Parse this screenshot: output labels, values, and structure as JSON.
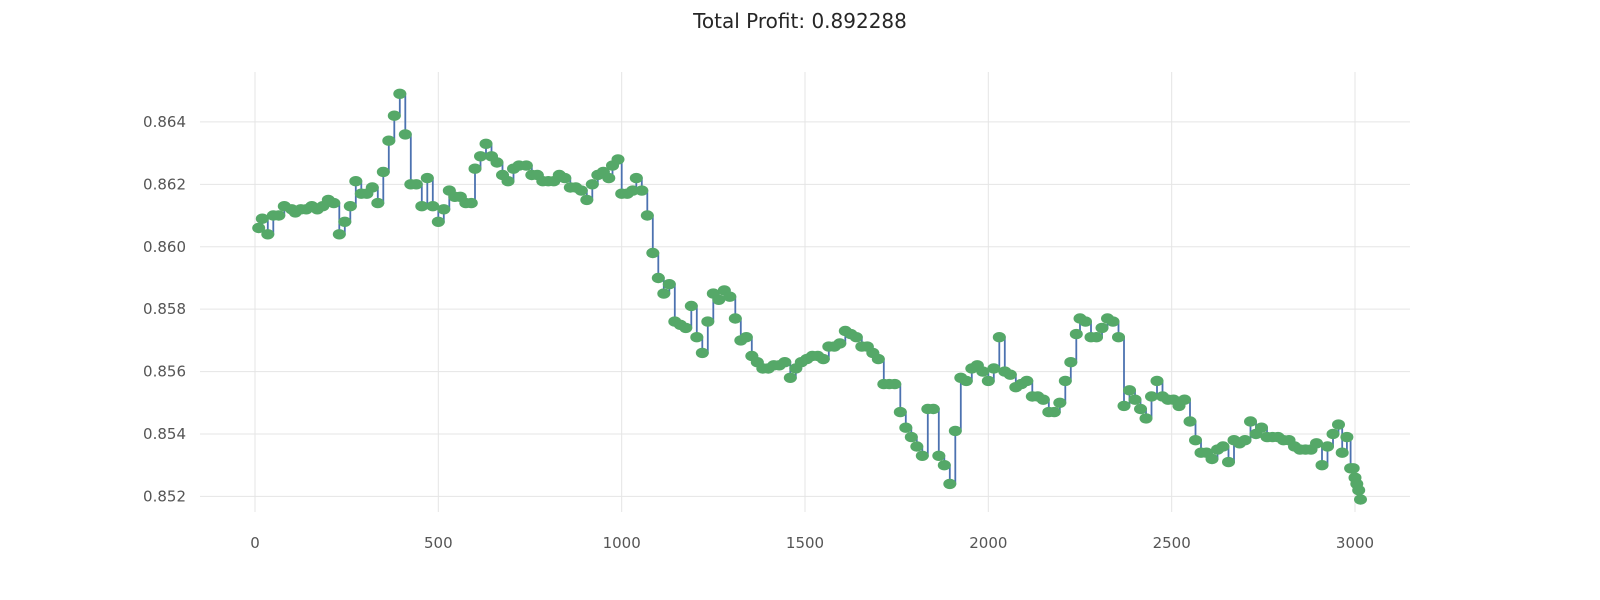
{
  "chart_data": {
    "type": "line",
    "title": "Total Profit: 0.892288",
    "xlabel": "",
    "ylabel": "",
    "xlim": [
      -150,
      3150
    ],
    "ylim": [
      0.8515,
      0.8656
    ],
    "x_ticks": [
      0,
      500,
      1000,
      1500,
      2000,
      2500,
      3000
    ],
    "y_ticks": [
      0.852,
      0.854,
      0.856,
      0.858,
      0.86,
      0.862,
      0.864
    ],
    "grid": true,
    "line_color": "#4c72b0",
    "marker_color": "#55a868",
    "series": [
      {
        "points": [
          [
            10,
            0.8606
          ],
          [
            20,
            0.8609
          ],
          [
            35,
            0.8604
          ],
          [
            50,
            0.861
          ],
          [
            65,
            0.861
          ],
          [
            80,
            0.8613
          ],
          [
            100,
            0.8612
          ],
          [
            110,
            0.8611
          ],
          [
            125,
            0.8612
          ],
          [
            140,
            0.8612
          ],
          [
            155,
            0.8613
          ],
          [
            170,
            0.8612
          ],
          [
            185,
            0.8613
          ],
          [
            200,
            0.8615
          ],
          [
            215,
            0.8614
          ],
          [
            230,
            0.8604
          ],
          [
            245,
            0.8608
          ],
          [
            260,
            0.8613
          ],
          [
            275,
            0.8621
          ],
          [
            290,
            0.8617
          ],
          [
            305,
            0.8617
          ],
          [
            320,
            0.8619
          ],
          [
            335,
            0.8614
          ],
          [
            350,
            0.8624
          ],
          [
            365,
            0.8634
          ],
          [
            380,
            0.8642
          ],
          [
            395,
            0.8649
          ],
          [
            410,
            0.8636
          ],
          [
            425,
            0.862
          ],
          [
            440,
            0.862
          ],
          [
            455,
            0.8613
          ],
          [
            470,
            0.8622
          ],
          [
            485,
            0.8613
          ],
          [
            500,
            0.8608
          ],
          [
            515,
            0.8612
          ],
          [
            530,
            0.8618
          ],
          [
            545,
            0.8616
          ],
          [
            560,
            0.8616
          ],
          [
            575,
            0.8614
          ],
          [
            590,
            0.8614
          ],
          [
            600,
            0.8625
          ],
          [
            615,
            0.8629
          ],
          [
            630,
            0.8633
          ],
          [
            645,
            0.8629
          ],
          [
            660,
            0.8627
          ],
          [
            675,
            0.8623
          ],
          [
            690,
            0.8621
          ],
          [
            705,
            0.8625
          ],
          [
            720,
            0.8626
          ],
          [
            740,
            0.8626
          ],
          [
            755,
            0.8623
          ],
          [
            770,
            0.8623
          ],
          [
            785,
            0.8621
          ],
          [
            800,
            0.8621
          ],
          [
            815,
            0.8621
          ],
          [
            830,
            0.8623
          ],
          [
            845,
            0.8622
          ],
          [
            860,
            0.8619
          ],
          [
            875,
            0.8619
          ],
          [
            890,
            0.8618
          ],
          [
            905,
            0.8615
          ],
          [
            920,
            0.862
          ],
          [
            935,
            0.8623
          ],
          [
            950,
            0.8624
          ],
          [
            965,
            0.8622
          ],
          [
            975,
            0.8626
          ],
          [
            990,
            0.8628
          ],
          [
            1000,
            0.8617
          ],
          [
            1015,
            0.8617
          ],
          [
            1030,
            0.8618
          ],
          [
            1040,
            0.8622
          ],
          [
            1055,
            0.8618
          ],
          [
            1070,
            0.861
          ],
          [
            1085,
            0.8598
          ],
          [
            1100,
            0.859
          ],
          [
            1115,
            0.8585
          ],
          [
            1130,
            0.8588
          ],
          [
            1145,
            0.8576
          ],
          [
            1160,
            0.8575
          ],
          [
            1175,
            0.8574
          ],
          [
            1190,
            0.8581
          ],
          [
            1205,
            0.8571
          ],
          [
            1220,
            0.8566
          ],
          [
            1235,
            0.8576
          ],
          [
            1250,
            0.8585
          ],
          [
            1265,
            0.8583
          ],
          [
            1280,
            0.8586
          ],
          [
            1295,
            0.8584
          ],
          [
            1310,
            0.8577
          ],
          [
            1325,
            0.857
          ],
          [
            1340,
            0.8571
          ],
          [
            1355,
            0.8565
          ],
          [
            1370,
            0.8563
          ],
          [
            1385,
            0.8561
          ],
          [
            1400,
            0.8561
          ],
          [
            1415,
            0.8562
          ],
          [
            1430,
            0.8562
          ],
          [
            1445,
            0.8563
          ],
          [
            1460,
            0.8558
          ],
          [
            1475,
            0.8561
          ],
          [
            1490,
            0.8563
          ],
          [
            1505,
            0.8564
          ],
          [
            1520,
            0.8565
          ],
          [
            1535,
            0.8565
          ],
          [
            1550,
            0.8564
          ],
          [
            1565,
            0.8568
          ],
          [
            1580,
            0.8568
          ],
          [
            1595,
            0.8569
          ],
          [
            1610,
            0.8573
          ],
          [
            1625,
            0.8572
          ],
          [
            1640,
            0.8571
          ],
          [
            1655,
            0.8568
          ],
          [
            1670,
            0.8568
          ],
          [
            1685,
            0.8566
          ],
          [
            1700,
            0.8564
          ],
          [
            1715,
            0.8556
          ],
          [
            1730,
            0.8556
          ],
          [
            1745,
            0.8556
          ],
          [
            1760,
            0.8547
          ],
          [
            1775,
            0.8542
          ],
          [
            1790,
            0.8539
          ],
          [
            1805,
            0.8536
          ],
          [
            1820,
            0.8533
          ],
          [
            1835,
            0.8548
          ],
          [
            1850,
            0.8548
          ],
          [
            1865,
            0.8533
          ],
          [
            1880,
            0.853
          ],
          [
            1895,
            0.8524
          ],
          [
            1910,
            0.8541
          ],
          [
            1925,
            0.8558
          ],
          [
            1940,
            0.8557
          ],
          [
            1955,
            0.8561
          ],
          [
            1970,
            0.8562
          ],
          [
            1985,
            0.856
          ],
          [
            2000,
            0.8557
          ],
          [
            2015,
            0.8561
          ],
          [
            2030,
            0.8571
          ],
          [
            2045,
            0.856
          ],
          [
            2060,
            0.8559
          ],
          [
            2075,
            0.8555
          ],
          [
            2090,
            0.8556
          ],
          [
            2105,
            0.8557
          ],
          [
            2120,
            0.8552
          ],
          [
            2135,
            0.8552
          ],
          [
            2150,
            0.8551
          ],
          [
            2165,
            0.8547
          ],
          [
            2180,
            0.8547
          ],
          [
            2195,
            0.855
          ],
          [
            2210,
            0.8557
          ],
          [
            2225,
            0.8563
          ],
          [
            2240,
            0.8572
          ],
          [
            2250,
            0.8577
          ],
          [
            2265,
            0.8576
          ],
          [
            2280,
            0.8571
          ],
          [
            2295,
            0.8571
          ],
          [
            2310,
            0.8574
          ],
          [
            2325,
            0.8577
          ],
          [
            2340,
            0.8576
          ],
          [
            2355,
            0.8571
          ],
          [
            2370,
            0.8549
          ],
          [
            2385,
            0.8554
          ],
          [
            2400,
            0.8551
          ],
          [
            2415,
            0.8548
          ],
          [
            2430,
            0.8545
          ],
          [
            2445,
            0.8552
          ],
          [
            2460,
            0.8557
          ],
          [
            2475,
            0.8552
          ],
          [
            2490,
            0.8551
          ],
          [
            2505,
            0.8551
          ],
          [
            2520,
            0.8549
          ],
          [
            2535,
            0.8551
          ],
          [
            2550,
            0.8544
          ],
          [
            2565,
            0.8538
          ],
          [
            2580,
            0.8534
          ],
          [
            2595,
            0.8534
          ],
          [
            2610,
            0.8532
          ],
          [
            2625,
            0.8535
          ],
          [
            2640,
            0.8536
          ],
          [
            2655,
            0.8531
          ],
          [
            2670,
            0.8538
          ],
          [
            2685,
            0.8537
          ],
          [
            2700,
            0.8538
          ],
          [
            2715,
            0.8544
          ],
          [
            2730,
            0.854
          ],
          [
            2745,
            0.8542
          ],
          [
            2760,
            0.8539
          ],
          [
            2775,
            0.8539
          ],
          [
            2790,
            0.8539
          ],
          [
            2805,
            0.8538
          ],
          [
            2820,
            0.8538
          ],
          [
            2835,
            0.8536
          ],
          [
            2850,
            0.8535
          ],
          [
            2865,
            0.8535
          ],
          [
            2880,
            0.8535
          ],
          [
            2895,
            0.8537
          ],
          [
            2910,
            0.853
          ],
          [
            2925,
            0.8536
          ],
          [
            2940,
            0.854
          ],
          [
            2955,
            0.8543
          ],
          [
            2965,
            0.8534
          ],
          [
            2978,
            0.8539
          ],
          [
            2988,
            0.8529
          ],
          [
            2995,
            0.8529
          ],
          [
            3000,
            0.8526
          ],
          [
            3005,
            0.8524
          ],
          [
            3010,
            0.8522
          ],
          [
            3015,
            0.8519
          ]
        ]
      }
    ]
  }
}
